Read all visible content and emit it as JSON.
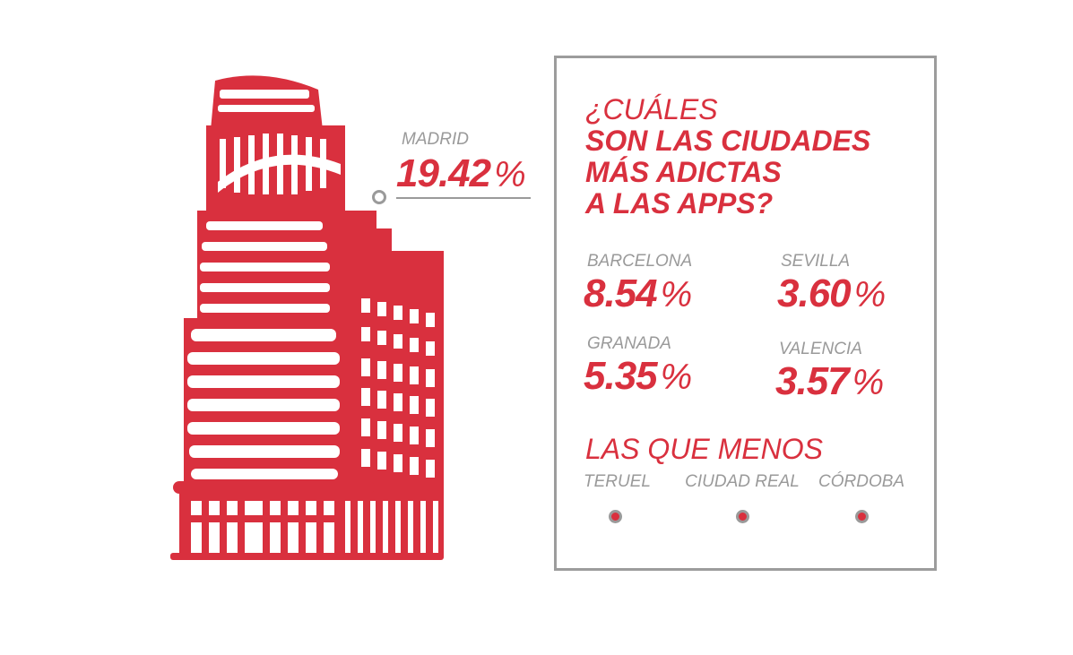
{
  "accent_color": "#d9303e",
  "muted_color": "#9a9a9a",
  "illustration": "building-icon",
  "featured": {
    "city": "MADRID",
    "value": "19.42",
    "unit": "%"
  },
  "panel": {
    "title_line1": "¿CUÁLES",
    "title_line2": "SON LAS CIUDADES",
    "title_line3": "MÁS ADICTAS",
    "title_line4": "A LAS APPS?",
    "stats": [
      {
        "city": "BARCELONA",
        "value": "8.54",
        "unit": "%"
      },
      {
        "city": "SEVILLA",
        "value": "3.60",
        "unit": "%"
      },
      {
        "city": "GRANADA",
        "value": "5.35",
        "unit": "%"
      },
      {
        "city": "VALENCIA",
        "value": "3.57",
        "unit": "%"
      }
    ],
    "least_title": "LAS QUE MENOS",
    "least": [
      "TERUEL",
      "CIUDAD REAL",
      "CÓRDOBA"
    ]
  }
}
